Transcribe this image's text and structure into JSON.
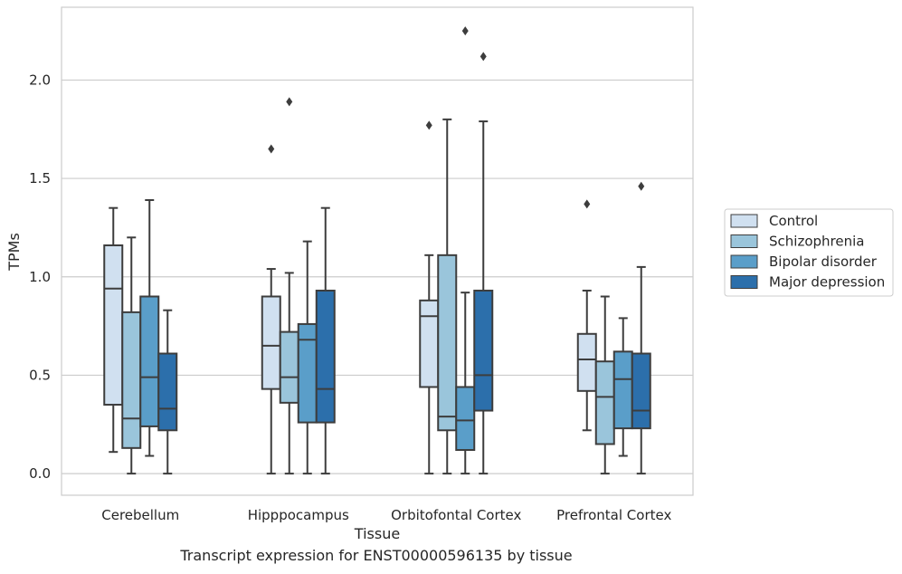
{
  "caption": "Transcript expression for ENST00000596135 by tissue",
  "chart_data": {
    "type": "boxplot",
    "xlabel": "Tissue",
    "ylabel": "TPMs",
    "ylim": [
      -0.11,
      2.37
    ],
    "yticks": [
      0.0,
      0.5,
      1.0,
      1.5,
      2.0
    ],
    "ytick_labels": [
      "0.0",
      "0.5",
      "1.0",
      "1.5",
      "2.0"
    ],
    "grid": "horizontal",
    "legend_position": "right",
    "categories": [
      "Cerebellum",
      "Hipppocampus",
      "Orbitofontal Cortex",
      "Prefrontal Cortex"
    ],
    "series": [
      {
        "name": "Control",
        "color": "#d0e0f0",
        "boxes": [
          {
            "whislo": 0.11,
            "q1": 0.35,
            "med": 0.94,
            "q3": 1.16,
            "whishi": 1.35,
            "fliers": []
          },
          {
            "whislo": 0.0,
            "q1": 0.43,
            "med": 0.65,
            "q3": 0.9,
            "whishi": 1.04,
            "fliers": [
              1.65
            ]
          },
          {
            "whislo": 0.0,
            "q1": 0.44,
            "med": 0.8,
            "q3": 0.88,
            "whishi": 1.11,
            "fliers": [
              1.77
            ]
          },
          {
            "whislo": 0.22,
            "q1": 0.42,
            "med": 0.58,
            "q3": 0.71,
            "whishi": 0.93,
            "fliers": [
              1.37
            ]
          }
        ]
      },
      {
        "name": "Schizophrenia",
        "color": "#9ac5db",
        "boxes": [
          {
            "whislo": 0.0,
            "q1": 0.13,
            "med": 0.28,
            "q3": 0.82,
            "whishi": 1.2,
            "fliers": []
          },
          {
            "whislo": 0.0,
            "q1": 0.36,
            "med": 0.49,
            "q3": 0.72,
            "whishi": 1.02,
            "fliers": [
              1.89
            ]
          },
          {
            "whislo": 0.0,
            "q1": 0.22,
            "med": 0.29,
            "q3": 1.11,
            "whishi": 1.8,
            "fliers": []
          },
          {
            "whislo": 0.0,
            "q1": 0.15,
            "med": 0.39,
            "q3": 0.57,
            "whishi": 0.9,
            "fliers": []
          }
        ]
      },
      {
        "name": "Bipolar disorder",
        "color": "#5a9ec9",
        "boxes": [
          {
            "whislo": 0.09,
            "q1": 0.24,
            "med": 0.49,
            "q3": 0.9,
            "whishi": 1.39,
            "fliers": []
          },
          {
            "whislo": 0.0,
            "q1": 0.26,
            "med": 0.68,
            "q3": 0.76,
            "whishi": 1.18,
            "fliers": []
          },
          {
            "whislo": 0.0,
            "q1": 0.12,
            "med": 0.27,
            "q3": 0.44,
            "whishi": 0.92,
            "fliers": [
              2.25
            ]
          },
          {
            "whislo": 0.09,
            "q1": 0.23,
            "med": 0.48,
            "q3": 0.62,
            "whishi": 0.79,
            "fliers": []
          }
        ]
      },
      {
        "name": "Major depression",
        "color": "#2c6fab",
        "boxes": [
          {
            "whislo": 0.0,
            "q1": 0.22,
            "med": 0.33,
            "q3": 0.61,
            "whishi": 0.83,
            "fliers": []
          },
          {
            "whislo": 0.0,
            "q1": 0.26,
            "med": 0.43,
            "q3": 0.93,
            "whishi": 1.35,
            "fliers": []
          },
          {
            "whislo": 0.0,
            "q1": 0.32,
            "med": 0.5,
            "q3": 0.93,
            "whishi": 1.79,
            "fliers": [
              2.12
            ]
          },
          {
            "whislo": 0.0,
            "q1": 0.23,
            "med": 0.32,
            "q3": 0.61,
            "whishi": 1.05,
            "fliers": [
              1.46
            ]
          }
        ]
      }
    ]
  }
}
